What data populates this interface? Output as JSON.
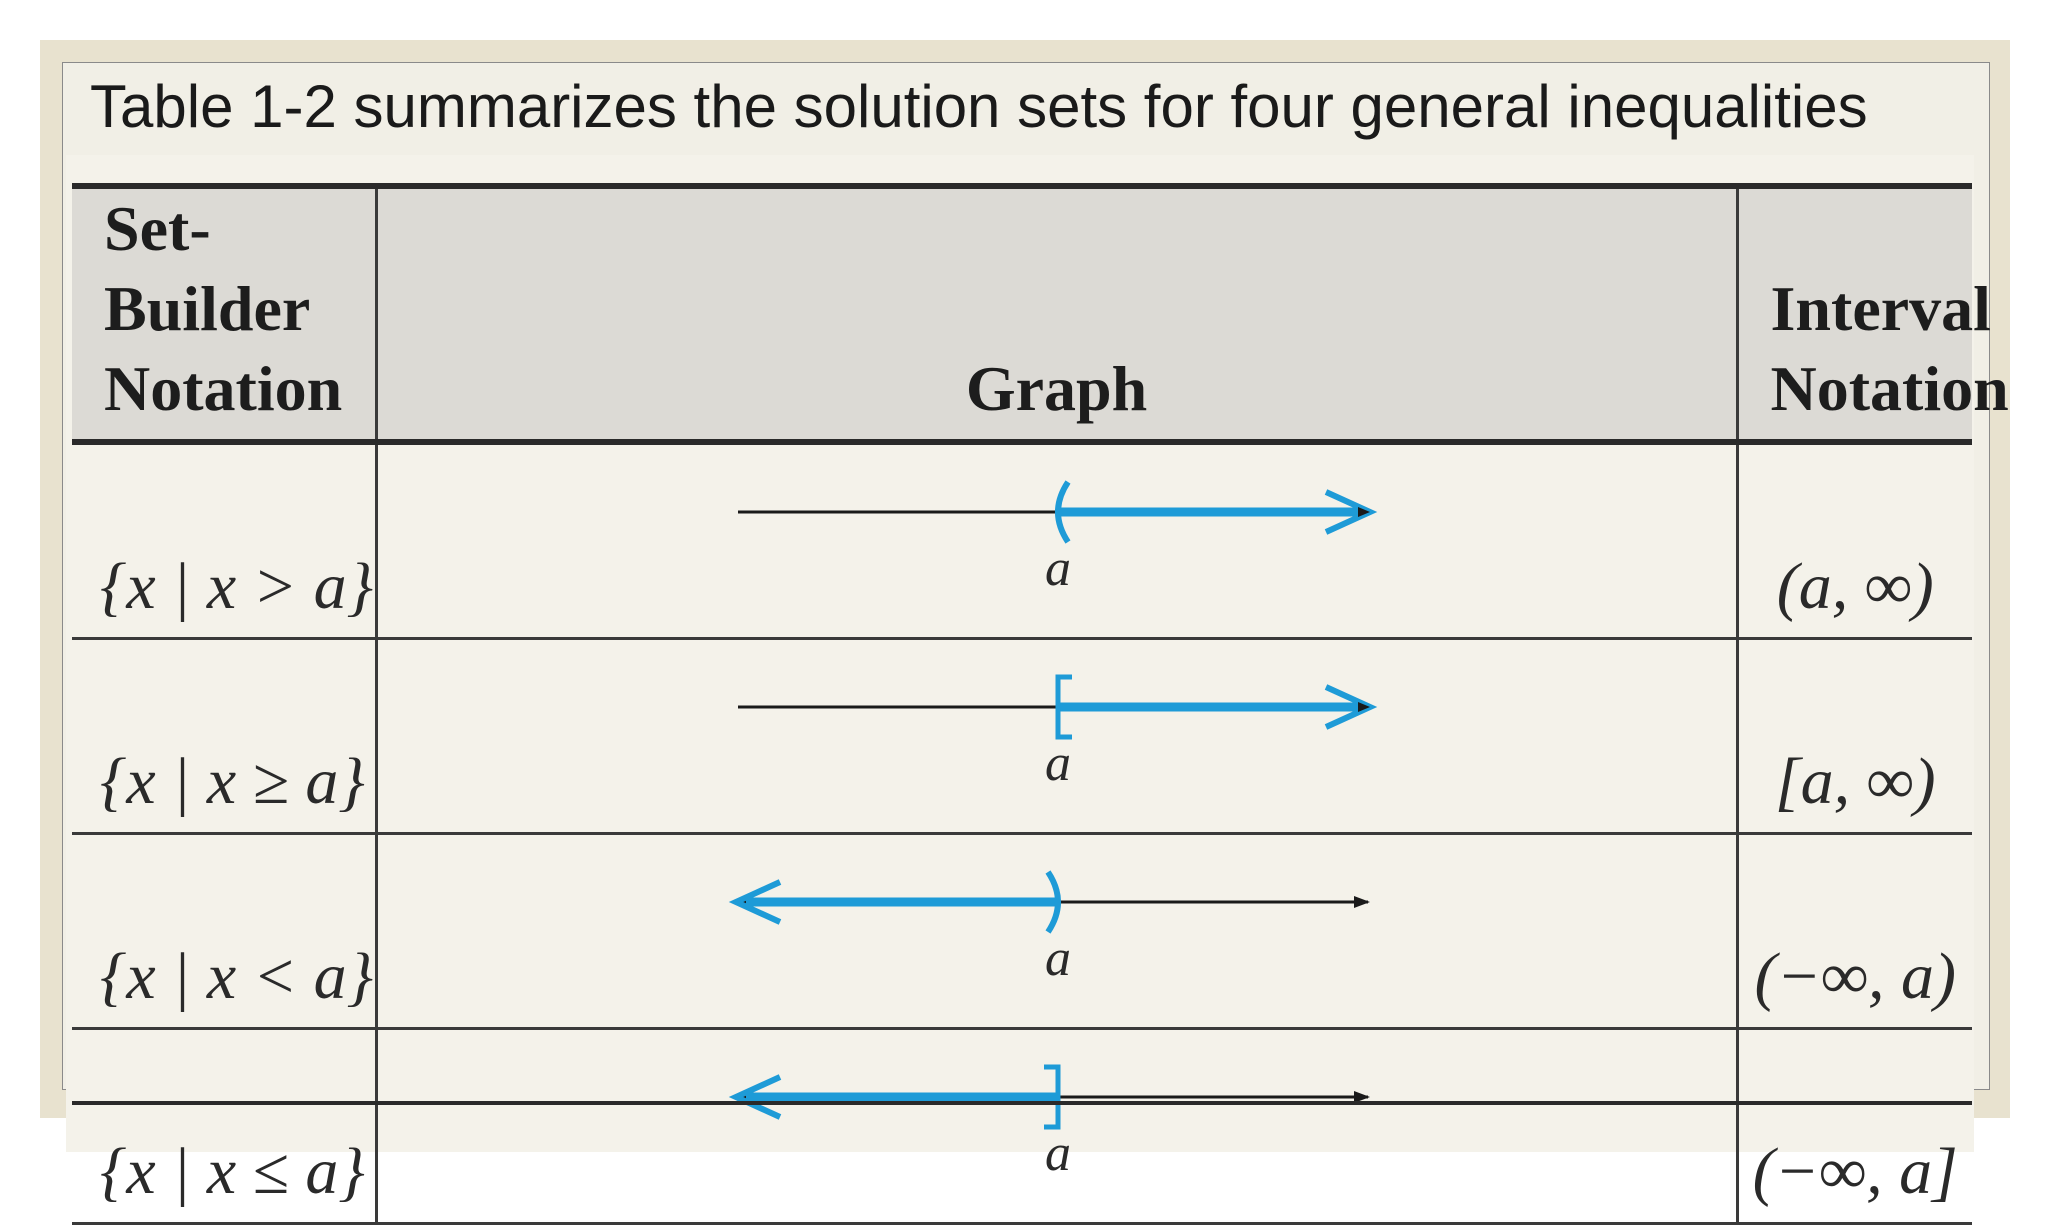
{
  "slide": {
    "title": "Table 1-2 summarizes the solution sets for four general inequalities"
  },
  "table": {
    "headers": {
      "set_builder": "Set-Builder\nNotation",
      "graph": "Graph",
      "interval": "Interval\nNotation"
    },
    "rows": [
      {
        "set_builder": "{x | x > a}",
        "point_label": "a",
        "endpoint": "open-paren",
        "direction": "right",
        "interval": "(a, ∞)"
      },
      {
        "set_builder": "{x | x ≥ a}",
        "point_label": "a",
        "endpoint": "closed-bracket",
        "direction": "right",
        "interval": "[a, ∞)"
      },
      {
        "set_builder": "{x | x < a}",
        "point_label": "a",
        "endpoint": "open-paren",
        "direction": "left",
        "interval": "(−∞, a)"
      },
      {
        "set_builder": "{x | x ≤ a}",
        "point_label": "a",
        "endpoint": "closed-bracket",
        "direction": "left",
        "interval": "(−∞, a]"
      }
    ]
  },
  "colors": {
    "highlight": "#1e9bd7",
    "line": "#1a1a1a",
    "header_bg": "#dcdad5",
    "body_bg": "#f4f2ea",
    "frame_bg": "#e8e2cf"
  }
}
